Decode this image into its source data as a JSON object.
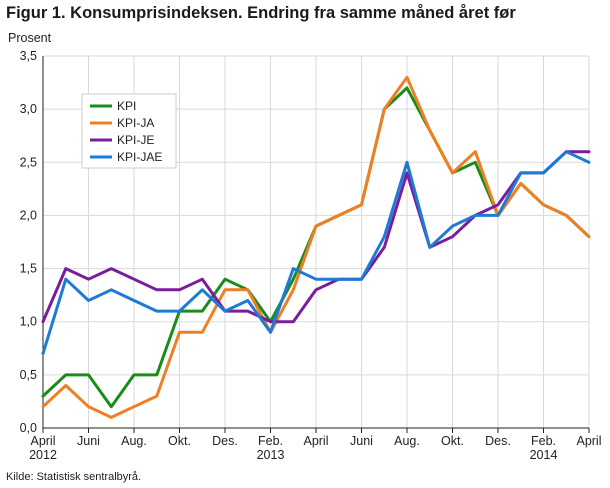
{
  "title": "Figur 1. Konsumprisindeksen. Endring fra samme måned året før",
  "source": "Kilde: Statistisk sentralbyrå.",
  "chart_data": {
    "type": "line",
    "ylabel": "Prosent",
    "xlabel": "",
    "ylim": [
      0,
      3.5
    ],
    "y_ticks": [
      "0,0",
      "0,5",
      "1,0",
      "1,5",
      "2,0",
      "2,5",
      "3,0",
      "3,5"
    ],
    "grid": "horizontal and vertical",
    "legend_position": "upper-left",
    "x": [
      "2012-04",
      "2012-05",
      "2012-06",
      "2012-07",
      "2012-08",
      "2012-09",
      "2012-10",
      "2012-11",
      "2012-12",
      "2013-01",
      "2013-02",
      "2013-03",
      "2013-04",
      "2013-05",
      "2013-06",
      "2013-07",
      "2013-08",
      "2013-09",
      "2013-10",
      "2013-11",
      "2013-12",
      "2014-01",
      "2014-02",
      "2014-03",
      "2014-04"
    ],
    "x_tick_labels": [
      {
        "index": 0,
        "label": "April",
        "year": "2012"
      },
      {
        "index": 2,
        "label": "Juni",
        "year": ""
      },
      {
        "index": 4,
        "label": "Aug.",
        "year": ""
      },
      {
        "index": 6,
        "label": "Okt.",
        "year": ""
      },
      {
        "index": 8,
        "label": "Des.",
        "year": ""
      },
      {
        "index": 10,
        "label": "Feb.",
        "year": "2013"
      },
      {
        "index": 12,
        "label": "April",
        "year": ""
      },
      {
        "index": 14,
        "label": "Juni",
        "year": ""
      },
      {
        "index": 16,
        "label": "Aug.",
        "year": ""
      },
      {
        "index": 18,
        "label": "Okt.",
        "year": ""
      },
      {
        "index": 20,
        "label": "Des.",
        "year": ""
      },
      {
        "index": 22,
        "label": "Feb.",
        "year": "2014"
      },
      {
        "index": 24,
        "label": "April",
        "year": ""
      }
    ],
    "series": [
      {
        "name": "KPI",
        "color": "#1a8c1a",
        "values": [
          0.3,
          0.5,
          0.5,
          0.2,
          0.5,
          0.5,
          1.1,
          1.1,
          1.4,
          1.3,
          1.0,
          1.4,
          1.9,
          2.0,
          2.1,
          3.0,
          3.2,
          2.8,
          2.4,
          2.5,
          2.0,
          2.3,
          2.1,
          2.0,
          1.8
        ]
      },
      {
        "name": "KPI-JA",
        "color": "#f07f24",
        "values": [
          0.2,
          0.4,
          0.2,
          0.1,
          0.2,
          0.3,
          0.9,
          0.9,
          1.3,
          1.3,
          0.9,
          1.3,
          1.9,
          2.0,
          2.1,
          3.0,
          3.3,
          2.8,
          2.4,
          2.6,
          2.0,
          2.3,
          2.1,
          2.0,
          1.8
        ]
      },
      {
        "name": "KPI-JE",
        "color": "#7b1c9c",
        "values": [
          1.0,
          1.5,
          1.4,
          1.5,
          1.4,
          1.3,
          1.3,
          1.4,
          1.1,
          1.1,
          1.0,
          1.0,
          1.3,
          1.4,
          1.4,
          1.7,
          2.4,
          1.7,
          1.8,
          2.0,
          2.1,
          2.4,
          2.4,
          2.6,
          2.6
        ]
      },
      {
        "name": "KPI-JAE",
        "color": "#1c7bd4",
        "values": [
          0.7,
          1.4,
          1.2,
          1.3,
          1.2,
          1.1,
          1.1,
          1.3,
          1.1,
          1.2,
          0.9,
          1.5,
          1.4,
          1.4,
          1.4,
          1.8,
          2.5,
          1.7,
          1.9,
          2.0,
          2.0,
          2.4,
          2.4,
          2.6,
          2.5
        ]
      }
    ]
  }
}
